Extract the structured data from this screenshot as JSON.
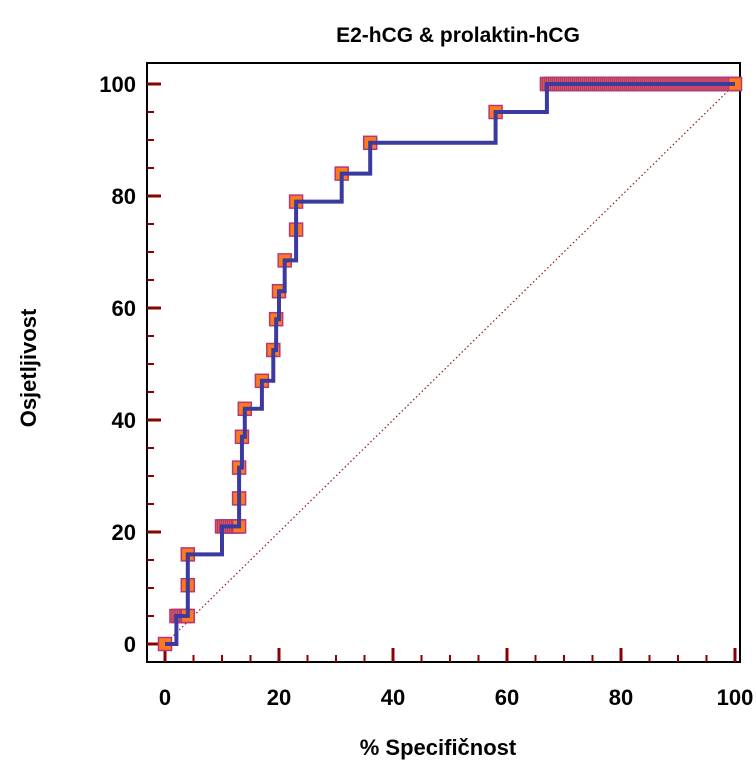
{
  "chart_data": {
    "type": "line",
    "title": "E2-hCG & prolaktin-hCG",
    "xlabel": "% Specifičnost",
    "ylabel": "Osjetljivost",
    "xlim": [
      0,
      100
    ],
    "ylim": [
      0,
      100
    ],
    "x_ticks": [
      "0",
      "20",
      "40",
      "60",
      "80",
      "100"
    ],
    "y_ticks": [
      "0",
      "20",
      "40",
      "60",
      "80",
      "100"
    ],
    "series": [
      {
        "marker_color": "#ff7a1a",
        "marker_edge_color": "#b33a7a",
        "line_color": "#3a3aa0",
        "x": [
          0,
          2,
          4,
          4,
          4,
          10,
          13,
          13,
          13,
          13.5,
          14,
          17,
          19,
          19.5,
          20,
          21,
          23,
          23,
          31,
          36,
          58,
          67,
          100
        ],
        "y": [
          0,
          5,
          5,
          10.5,
          16,
          21,
          21,
          26,
          31.5,
          37,
          42,
          47,
          52.5,
          58,
          63,
          68.5,
          74,
          79,
          84,
          89.5,
          95,
          100,
          100
        ]
      }
    ],
    "reference_line": {
      "from": [
        0,
        0
      ],
      "to": [
        100,
        100
      ],
      "color": "#8b1a1a",
      "style": "dotted"
    },
    "grid": false,
    "legend": "none"
  }
}
